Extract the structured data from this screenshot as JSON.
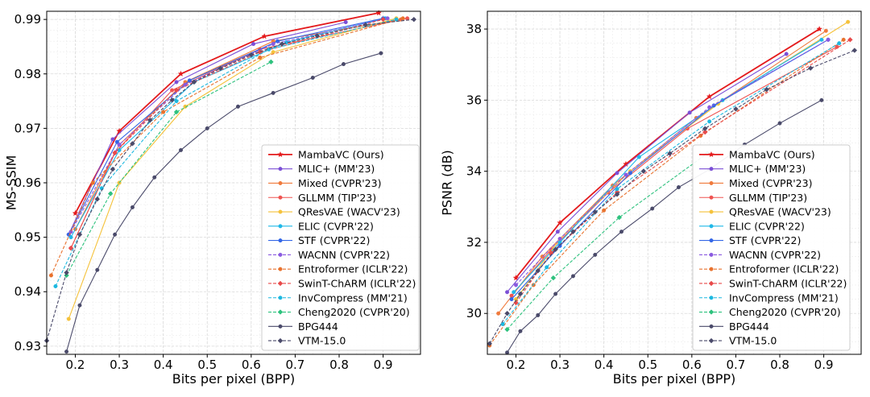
{
  "chart_data": [
    {
      "type": "line",
      "xlabel": "Bits per pixel (BPP)",
      "ylabel": "MS-SSIM",
      "xlim": [
        0.135,
        0.985
      ],
      "ylim": [
        0.9285,
        0.9915
      ],
      "x_ticks": [
        "0.2",
        "0.3",
        "0.4",
        "0.5",
        "0.6",
        "0.7",
        "0.8",
        "0.9"
      ],
      "x_tick_values": [
        0.2,
        0.3,
        0.4,
        0.5,
        0.6,
        0.7,
        0.8,
        0.9
      ],
      "y_ticks": [
        "0.93",
        "0.94",
        "0.95",
        "0.96",
        "0.97",
        "0.98",
        "0.99"
      ],
      "y_tick_values": [
        0.93,
        0.94,
        0.95,
        0.96,
        0.97,
        0.98,
        0.99
      ],
      "grid": true,
      "legend_position": "lower-right",
      "series": [
        {
          "name": "MambaVC (Ours)",
          "color": "#e41a1c",
          "dashed": false,
          "marker": "star",
          "x": [
            0.2,
            0.3,
            0.44,
            0.63,
            0.89
          ],
          "y": [
            0.9544,
            0.9695,
            0.98,
            0.9869,
            0.9912
          ]
        },
        {
          "name": "MLIC+ (MM'23)",
          "color": "#7b4fd6",
          "dashed": false,
          "marker": "circle",
          "x": [
            0.185,
            0.285,
            0.43,
            0.605,
            0.815
          ],
          "y": [
            0.9505,
            0.968,
            0.9785,
            0.9855,
            0.9895
          ]
        },
        {
          "name": "Mixed (CVPR'23)",
          "color": "#f07a3c",
          "dashed": false,
          "marker": "circle",
          "x": [
            0.2,
            0.3,
            0.45,
            0.65,
            0.94
          ],
          "y": [
            0.9515,
            0.967,
            0.9785,
            0.986,
            0.99
          ]
        },
        {
          "name": "GLLMM (TIP'23)",
          "color": "#ef5350",
          "dashed": false,
          "marker": "circle",
          "x": [
            0.19,
            0.29,
            0.42,
            0.62,
            0.955
          ],
          "y": [
            0.948,
            0.9655,
            0.977,
            0.9845,
            0.9902
          ]
        },
        {
          "name": "QResVAE (WACV'23)",
          "color": "#f5c23b",
          "dashed": false,
          "marker": "circle",
          "x": [
            0.185,
            0.3,
            0.45,
            0.65,
            0.93
          ],
          "y": [
            0.935,
            0.96,
            0.974,
            0.984,
            0.9902
          ]
        },
        {
          "name": "ELIC (CVPR'22)",
          "color": "#1fb8e8",
          "dashed": false,
          "marker": "circle",
          "x": [
            0.19,
            0.3,
            0.47,
            0.68,
            0.905
          ],
          "y": [
            0.95,
            0.966,
            0.9785,
            0.9858,
            0.9902
          ]
        },
        {
          "name": "STF (CVPR'22)",
          "color": "#3366e6",
          "dashed": false,
          "marker": "circle",
          "x": [
            0.185,
            0.295,
            0.46,
            0.66,
            0.9
          ],
          "y": [
            0.9505,
            0.9675,
            0.9788,
            0.986,
            0.9902
          ]
        },
        {
          "name": "WACNN (CVPR'22)",
          "color": "#8a5ae0",
          "dashed": true,
          "marker": "circle",
          "x": [
            0.19,
            0.3,
            0.45,
            0.65,
            0.91
          ],
          "y": [
            0.951,
            0.967,
            0.978,
            0.9855,
            0.9902
          ]
        },
        {
          "name": "Entroformer (ICLR'22)",
          "color": "#e8722e",
          "dashed": true,
          "marker": "circle",
          "x": [
            0.145,
            0.24,
            0.4,
            0.62,
            0.945
          ],
          "y": [
            0.943,
            0.96,
            0.973,
            0.983,
            0.9902
          ]
        },
        {
          "name": "SwinT-ChARM (ICLR'22)",
          "color": "#e84a4a",
          "dashed": true,
          "marker": "diamond",
          "x": [
            0.19,
            0.29,
            0.43,
            0.62,
            0.9
          ],
          "y": [
            0.948,
            0.9655,
            0.977,
            0.984,
            0.99
          ]
        },
        {
          "name": "InvCompress (MM'21)",
          "color": "#1cb8e0",
          "dashed": true,
          "marker": "circle",
          "x": [
            0.155,
            0.26,
            0.43,
            0.64,
            0.93
          ],
          "y": [
            0.941,
            0.959,
            0.975,
            0.9845,
            0.99
          ]
        },
        {
          "name": "Cheng2020 (CVPR'20)",
          "color": "#2ec27e",
          "dashed": true,
          "marker": "diamond",
          "x": [
            0.18,
            0.28,
            0.43,
            0.645
          ],
          "y": [
            0.943,
            0.958,
            0.973,
            0.9822
          ]
        },
        {
          "name": "BPG444",
          "color": "#4a4a6a",
          "dashed": false,
          "marker": "circle",
          "x": [
            0.18,
            0.21,
            0.25,
            0.29,
            0.33,
            0.38,
            0.44,
            0.5,
            0.57,
            0.65,
            0.74,
            0.81,
            0.895
          ],
          "y": [
            0.929,
            0.9375,
            0.944,
            0.9505,
            0.9555,
            0.961,
            0.966,
            0.97,
            0.974,
            0.9765,
            0.9793,
            0.9818,
            0.9838
          ]
        },
        {
          "name": "VTM-15.0",
          "color": "#4a4a6a",
          "dashed": true,
          "marker": "diamond",
          "x": [
            0.135,
            0.18,
            0.21,
            0.25,
            0.285,
            0.33,
            0.37,
            0.42,
            0.47,
            0.53,
            0.6,
            0.67,
            0.75,
            0.86,
            0.97
          ],
          "y": [
            0.931,
            0.9435,
            0.9505,
            0.957,
            0.9625,
            0.9672,
            0.9715,
            0.9752,
            0.9785,
            0.981,
            0.9835,
            0.9855,
            0.987,
            0.989,
            0.99
          ]
        }
      ]
    },
    {
      "type": "line",
      "xlabel": "Bits per pixel (BPP)",
      "ylabel": "PSNR (dB)",
      "xlim": [
        0.135,
        0.985
      ],
      "ylim": [
        28.85,
        38.5
      ],
      "x_ticks": [
        "0.2",
        "0.3",
        "0.4",
        "0.5",
        "0.6",
        "0.7",
        "0.8",
        "0.9"
      ],
      "x_tick_values": [
        0.2,
        0.3,
        0.4,
        0.5,
        0.6,
        0.7,
        0.8,
        0.9
      ],
      "y_ticks": [
        "30",
        "32",
        "34",
        "36",
        "38"
      ],
      "y_tick_values": [
        30,
        32,
        34,
        36,
        38
      ],
      "grid": true,
      "legend_position": "lower-right",
      "series": [
        {
          "name": "MambaVC (Ours)",
          "color": "#e41a1c",
          "dashed": false,
          "marker": "star",
          "x": [
            0.2,
            0.3,
            0.45,
            0.64,
            0.89
          ],
          "y": [
            31.0,
            32.55,
            34.2,
            36.1,
            38.0
          ]
        },
        {
          "name": "MLIC+ (MM'23)",
          "color": "#7b4fd6",
          "dashed": false,
          "marker": "circle",
          "x": [
            0.18,
            0.295,
            0.43,
            0.595,
            0.815
          ],
          "y": [
            30.6,
            32.3,
            33.95,
            35.65,
            37.3
          ]
        },
        {
          "name": "Mixed (CVPR'23)",
          "color": "#f07a3c",
          "dashed": false,
          "marker": "circle",
          "x": [
            0.16,
            0.26,
            0.42,
            0.61,
            0.905
          ],
          "y": [
            30.0,
            31.6,
            33.6,
            35.5,
            37.95
          ]
        },
        {
          "name": "GLLMM (TIP'23)",
          "color": "#ef5350",
          "dashed": false,
          "marker": "circle",
          "x": [
            0.19,
            0.28,
            0.41,
            0.59,
            0.93
          ],
          "y": [
            30.5,
            31.8,
            33.4,
            35.2,
            37.5
          ]
        },
        {
          "name": "QResVAE (WACV'23)",
          "color": "#f5c23b",
          "dashed": false,
          "marker": "circle",
          "x": [
            0.2,
            0.3,
            0.46,
            0.66,
            0.955
          ],
          "y": [
            30.4,
            32.1,
            34.0,
            35.9,
            38.2
          ]
        },
        {
          "name": "ELIC (CVPR'22)",
          "color": "#1fb8e8",
          "dashed": false,
          "marker": "circle",
          "x": [
            0.195,
            0.3,
            0.48,
            0.67,
            0.895
          ],
          "y": [
            30.6,
            32.0,
            34.4,
            36.0,
            37.7
          ]
        },
        {
          "name": "STF (CVPR'22)",
          "color": "#3366e6",
          "dashed": false,
          "marker": "circle",
          "x": [
            0.19,
            0.3,
            0.46,
            0.65,
            0.91
          ],
          "y": [
            30.4,
            31.9,
            33.95,
            35.85,
            37.7
          ]
        },
        {
          "name": "WACNN (CVPR'22)",
          "color": "#8a5ae0",
          "dashed": true,
          "marker": "circle",
          "x": [
            0.2,
            0.3,
            0.45,
            0.64,
            0.91
          ],
          "y": [
            30.8,
            32.1,
            33.9,
            35.8,
            37.7
          ]
        },
        {
          "name": "Entroformer (ICLR'22)",
          "color": "#e8722e",
          "dashed": true,
          "marker": "circle",
          "x": [
            0.14,
            0.24,
            0.4,
            0.62,
            0.945
          ],
          "y": [
            29.1,
            30.8,
            32.9,
            35.0,
            37.7
          ]
        },
        {
          "name": "SwinT-ChARM (ICLR'22)",
          "color": "#e84a4a",
          "dashed": true,
          "marker": "diamond",
          "x": [
            0.2,
            0.28,
            0.43,
            0.63,
            0.96
          ],
          "y": [
            30.3,
            31.7,
            33.4,
            35.1,
            37.7
          ]
        },
        {
          "name": "InvCompress (MM'21)",
          "color": "#1cb8e0",
          "dashed": true,
          "marker": "circle",
          "x": [
            0.17,
            0.27,
            0.43,
            0.64,
            0.935
          ],
          "y": [
            29.7,
            31.3,
            33.5,
            35.4,
            37.6
          ]
        },
        {
          "name": "Cheng2020 (CVPR'20)",
          "color": "#2ec27e",
          "dashed": true,
          "marker": "diamond",
          "x": [
            0.18,
            0.285,
            0.435,
            0.635
          ],
          "y": [
            29.55,
            31.0,
            32.7,
            34.5
          ]
        },
        {
          "name": "BPG444",
          "color": "#4a4a6a",
          "dashed": false,
          "marker": "circle",
          "x": [
            0.18,
            0.21,
            0.25,
            0.29,
            0.33,
            0.38,
            0.44,
            0.51,
            0.57,
            0.64,
            0.72,
            0.8,
            0.895
          ],
          "y": [
            28.9,
            29.5,
            29.95,
            30.55,
            31.05,
            31.65,
            32.3,
            32.95,
            33.55,
            34.05,
            34.75,
            35.35,
            36.0
          ]
        },
        {
          "name": "VTM-15.0",
          "color": "#4a4a6a",
          "dashed": true,
          "marker": "diamond",
          "x": [
            0.14,
            0.18,
            0.21,
            0.25,
            0.29,
            0.33,
            0.38,
            0.43,
            0.49,
            0.55,
            0.63,
            0.7,
            0.77,
            0.87,
            0.97
          ],
          "y": [
            29.15,
            30.0,
            30.55,
            31.2,
            31.8,
            32.3,
            32.85,
            33.35,
            34.0,
            34.5,
            35.2,
            35.75,
            36.3,
            36.9,
            37.4
          ]
        }
      ]
    }
  ]
}
